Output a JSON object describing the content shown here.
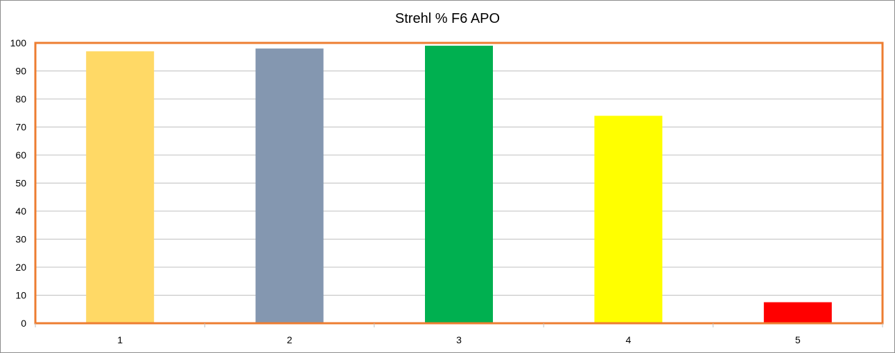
{
  "chart_data": {
    "type": "bar",
    "title": "Strehl % F6 APO",
    "xlabel": "",
    "ylabel": "",
    "categories": [
      "1",
      "2",
      "3",
      "4",
      "5"
    ],
    "values": [
      97,
      98,
      99,
      74,
      7.5
    ],
    "bar_colors": [
      "#FFD966",
      "#8497B0",
      "#00B050",
      "#FFFF00",
      "#FF0000"
    ],
    "ylim": [
      0,
      100
    ],
    "yticks": [
      0,
      10,
      20,
      30,
      40,
      50,
      60,
      70,
      80,
      90,
      100
    ],
    "grid": true,
    "legend": "none",
    "plot_border_color": "#ED7D31",
    "gridline_color": "#BFBFBF"
  }
}
